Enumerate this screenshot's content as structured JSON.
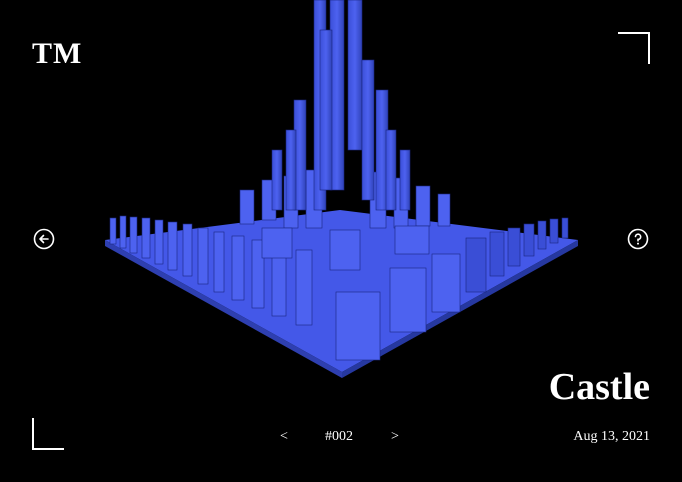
{
  "brand": {
    "logo": "TM"
  },
  "artwork": {
    "title": "Castle",
    "number": "#002",
    "date": "Aug 13, 2021"
  },
  "nav": {
    "prev_label": "<",
    "next_label": ">"
  },
  "icons": {
    "back": "arrow-left-circle-icon",
    "help": "question-circle-icon"
  },
  "colors": {
    "background": "#000000",
    "accent": "#4d62f0",
    "text": "#ffffff"
  }
}
